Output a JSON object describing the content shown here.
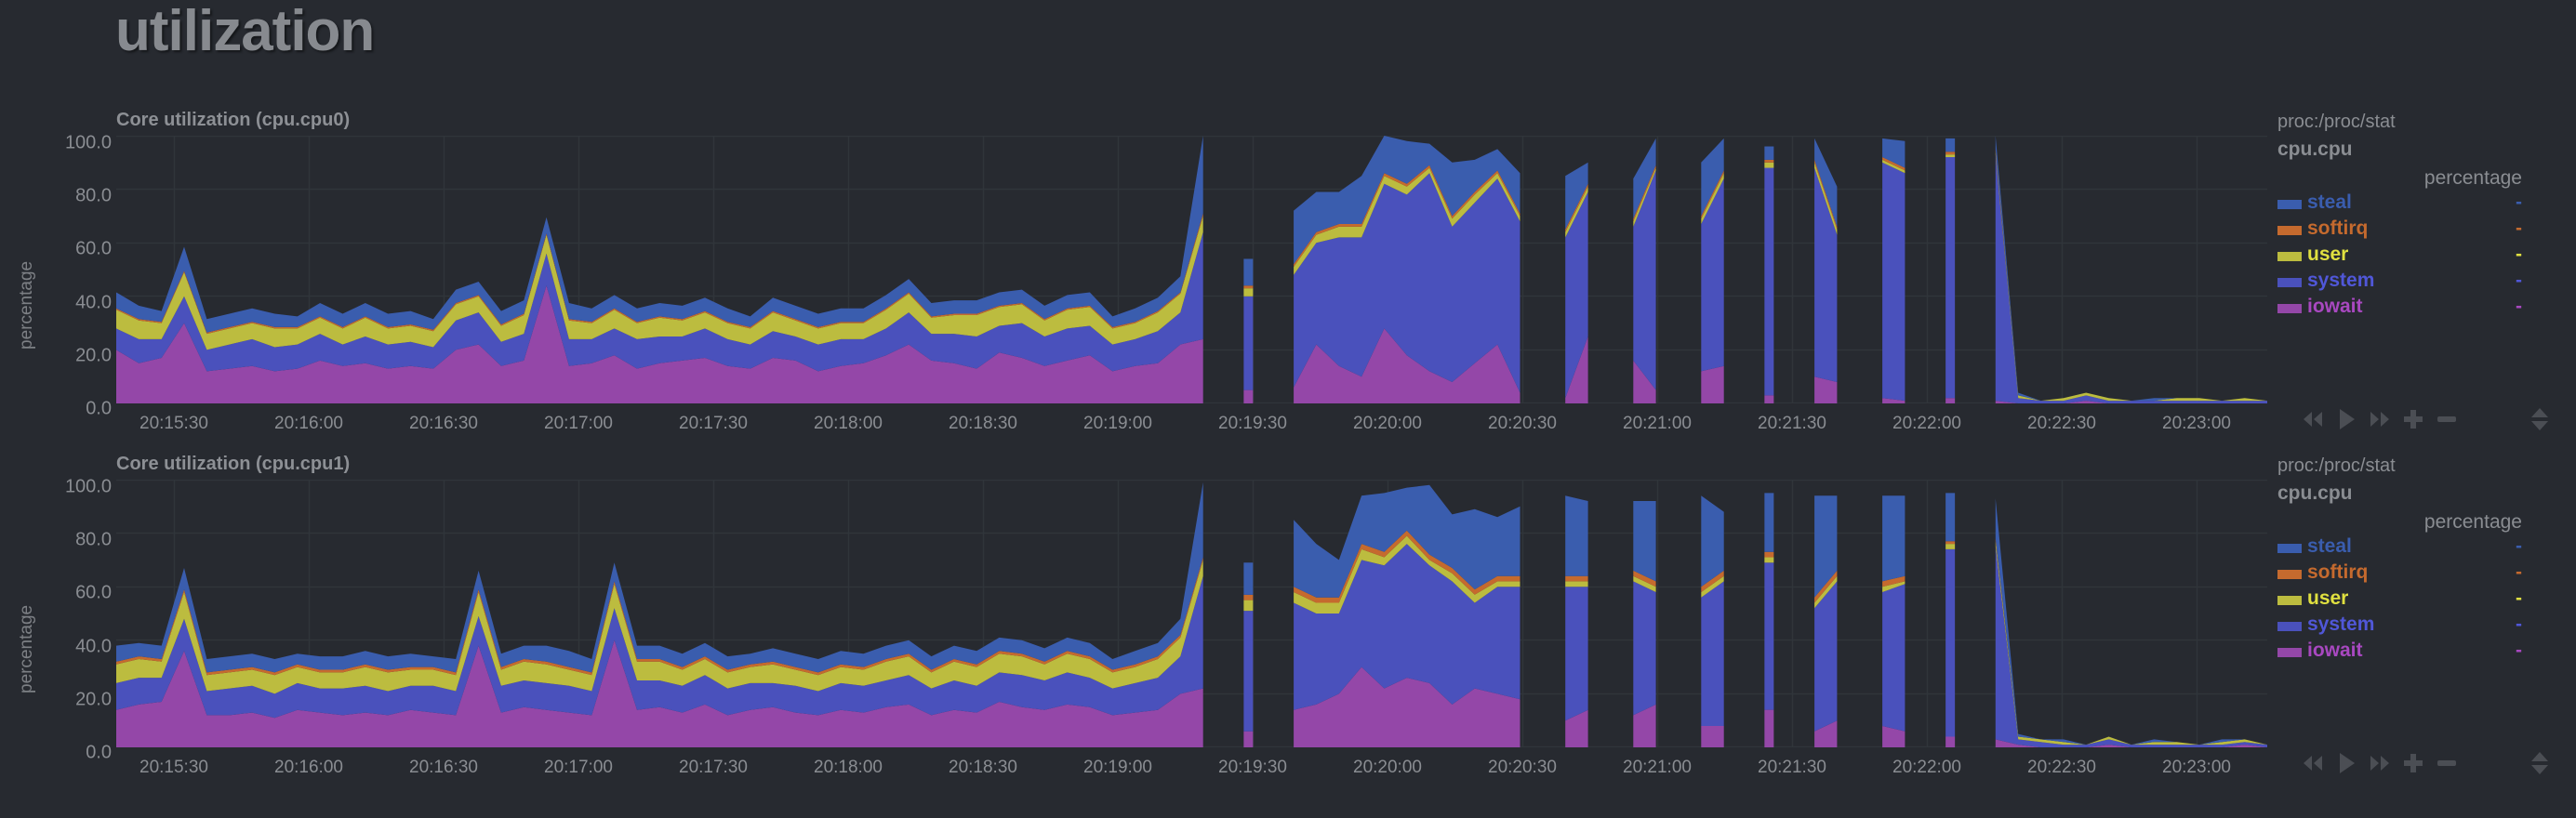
{
  "page": {
    "title": "utilization"
  },
  "colors": {
    "background": "#272a30",
    "grid": "#30353a",
    "steal": "#3a5dae",
    "softirq": "#c56a2e",
    "user": "#bcbc3f",
    "system": "#4a51bc",
    "iowait": "#9447a8",
    "controls": "#4b4e54"
  },
  "charts": [
    {
      "id": "cpu0",
      "title": "Core utilization (cpu.cpu0)",
      "ylabel": "percentage",
      "legend": {
        "source": "proc:/proc/stat",
        "context": "cpu.cpu",
        "units": "percentage",
        "items": [
          {
            "name": "steal",
            "value": "-",
            "color": "#3a5dae"
          },
          {
            "name": "softirq",
            "value": "-",
            "color": "#c56a2e"
          },
          {
            "name": "user",
            "value": "-",
            "color": "#e0e040"
          },
          {
            "name": "system",
            "value": "-",
            "color": "#5057d8"
          },
          {
            "name": "iowait",
            "value": "-",
            "color": "#a848c0"
          }
        ]
      }
    },
    {
      "id": "cpu1",
      "title": "Core utilization (cpu.cpu1)",
      "ylabel": "percentage",
      "legend": {
        "source": "proc:/proc/stat",
        "context": "cpu.cpu",
        "units": "percentage",
        "items": [
          {
            "name": "steal",
            "value": "-",
            "color": "#3a5dae"
          },
          {
            "name": "softirq",
            "value": "-",
            "color": "#c56a2e"
          },
          {
            "name": "user",
            "value": "-",
            "color": "#e0e040"
          },
          {
            "name": "system",
            "value": "-",
            "color": "#5057d8"
          },
          {
            "name": "iowait",
            "value": "-",
            "color": "#a848c0"
          }
        ]
      }
    }
  ],
  "yticks": [
    "100.0",
    "80.0",
    "60.0",
    "40.0",
    "20.0",
    "0.0"
  ],
  "xticks": [
    "20:15:30",
    "20:16:00",
    "20:16:30",
    "20:17:00",
    "20:17:30",
    "20:18:00",
    "20:18:30",
    "20:19:00",
    "20:19:30",
    "20:20:00",
    "20:20:30",
    "20:21:00",
    "20:21:30",
    "20:22:00",
    "20:22:30",
    "20:23:00"
  ],
  "controls": [
    "pan-left",
    "play",
    "pan-right",
    "zoom-in",
    "zoom-out",
    "resize"
  ],
  "chart_data": [
    {
      "type": "area",
      "stacked": true,
      "title": "Core utilization (cpu.cpu0)",
      "xlabel": "",
      "ylabel": "percentage",
      "ylim": [
        0,
        100
      ],
      "grid": true,
      "legend_position": "right",
      "x_start": "20:15:17",
      "x_step_seconds": 5,
      "stack_order": [
        "iowait",
        "system",
        "user",
        "softirq",
        "steal"
      ],
      "series": [
        {
          "name": "iowait",
          "values": [
            20,
            15,
            17,
            30,
            12,
            13,
            14,
            12,
            13,
            16,
            14,
            15,
            13,
            14,
            13,
            20,
            22,
            14,
            16,
            44,
            14,
            15,
            18,
            13,
            15,
            16,
            17,
            14,
            13,
            17,
            16,
            12,
            14,
            15,
            18,
            22,
            16,
            15,
            13,
            19,
            17,
            14,
            16,
            18,
            12,
            14,
            15,
            22,
            24,
            null,
            5,
            null,
            6,
            22,
            14,
            10,
            28,
            18,
            12,
            8,
            15,
            22,
            4,
            null,
            2,
            25,
            null,
            16,
            5,
            null,
            12,
            14,
            null,
            3,
            null,
            10,
            8,
            null,
            2,
            1,
            null,
            2,
            null,
            1,
            0,
            0,
            0,
            1,
            0,
            0,
            0,
            0,
            0,
            0,
            0,
            0
          ]
        },
        {
          "name": "system",
          "values": [
            8,
            9,
            7,
            10,
            8,
            9,
            10,
            9,
            9,
            10,
            8,
            10,
            9,
            9,
            8,
            11,
            12,
            9,
            10,
            12,
            10,
            9,
            10,
            11,
            10,
            9,
            11,
            10,
            9,
            10,
            9,
            10,
            10,
            9,
            10,
            12,
            10,
            11,
            12,
            10,
            13,
            11,
            12,
            11,
            10,
            10,
            12,
            12,
            40,
            null,
            35,
            null,
            42,
            38,
            48,
            52,
            54,
            60,
            74,
            58,
            60,
            62,
            64,
            null,
            60,
            54,
            null,
            50,
            82,
            null,
            55,
            70,
            null,
            85,
            null,
            78,
            55,
            null,
            88,
            85,
            null,
            90,
            null,
            92,
            2,
            1,
            1,
            2,
            1,
            1,
            1,
            1,
            1,
            1,
            1,
            1
          ]
        },
        {
          "name": "user",
          "values": [
            7,
            7,
            6,
            9,
            6,
            6,
            6,
            7,
            6,
            6,
            6,
            7,
            6,
            6,
            6,
            6,
            6,
            6,
            7,
            7,
            7,
            6,
            7,
            6,
            7,
            6,
            6,
            6,
            6,
            7,
            6,
            6,
            6,
            6,
            7,
            7,
            6,
            7,
            8,
            7,
            7,
            6,
            7,
            7,
            6,
            6,
            7,
            7,
            6,
            null,
            3,
            null,
            3,
            3,
            4,
            4,
            3,
            3,
            2,
            3,
            3,
            2,
            2,
            null,
            2,
            2,
            null,
            2,
            1,
            null,
            2,
            2,
            null,
            2,
            null,
            2,
            2,
            null,
            1,
            1,
            null,
            1,
            null,
            1,
            1,
            0,
            1,
            1,
            1,
            0,
            0,
            1,
            1,
            0,
            1,
            0
          ]
        },
        {
          "name": "softirq",
          "values": [
            0.5,
            0.5,
            0.5,
            0.5,
            0.5,
            0.5,
            0.5,
            0.5,
            0.5,
            0.5,
            0.5,
            0.5,
            0.5,
            0.5,
            0.5,
            0.5,
            0.5,
            0.5,
            0.5,
            0.5,
            0.5,
            0.5,
            0.5,
            0.5,
            0.5,
            0.5,
            0.5,
            0.5,
            0.5,
            0.5,
            0.5,
            0.5,
            0.5,
            0.5,
            0.5,
            0.5,
            0.5,
            0.5,
            0.5,
            0.5,
            0.5,
            0.5,
            0.5,
            0.5,
            0.5,
            0.5,
            0.5,
            0.5,
            1,
            null,
            1,
            null,
            1,
            1,
            1,
            1,
            1,
            1,
            1,
            1,
            1,
            1,
            1,
            null,
            1,
            1,
            null,
            1,
            1,
            null,
            1,
            1,
            null,
            1,
            null,
            1,
            1,
            null,
            1,
            1,
            null,
            1,
            null,
            1,
            0,
            0,
            0,
            0,
            0,
            0,
            0,
            0,
            0,
            0,
            0,
            0
          ]
        },
        {
          "name": "steal",
          "values": [
            6,
            5,
            4,
            9,
            5,
            5,
            5,
            5,
            4,
            5,
            5,
            5,
            5,
            5,
            4,
            5,
            5,
            5,
            5,
            6,
            6,
            5,
            5,
            5,
            5,
            5,
            5,
            5,
            4,
            5,
            5,
            5,
            5,
            5,
            5,
            5,
            5,
            5,
            5,
            5,
            5,
            5,
            5,
            5,
            4,
            5,
            5,
            6,
            30,
            null,
            10,
            null,
            20,
            15,
            12,
            18,
            15,
            16,
            8,
            20,
            12,
            8,
            15,
            null,
            20,
            8,
            null,
            15,
            10,
            null,
            20,
            12,
            null,
            5,
            null,
            8,
            15,
            null,
            7,
            10,
            null,
            5,
            null,
            5,
            1,
            0,
            0,
            0,
            0,
            0,
            1,
            0,
            0,
            0,
            0,
            0
          ]
        }
      ]
    },
    {
      "type": "area",
      "stacked": true,
      "title": "Core utilization (cpu.cpu1)",
      "xlabel": "",
      "ylabel": "percentage",
      "ylim": [
        0,
        100
      ],
      "grid": true,
      "legend_position": "right",
      "x_start": "20:15:17",
      "x_step_seconds": 5,
      "stack_order": [
        "iowait",
        "system",
        "user",
        "softirq",
        "steal"
      ],
      "series": [
        {
          "name": "iowait",
          "values": [
            14,
            16,
            17,
            36,
            12,
            12,
            13,
            11,
            14,
            13,
            12,
            13,
            12,
            14,
            13,
            12,
            38,
            13,
            15,
            14,
            13,
            12,
            40,
            14,
            15,
            13,
            16,
            12,
            14,
            15,
            13,
            12,
            14,
            13,
            15,
            16,
            12,
            14,
            13,
            17,
            15,
            14,
            16,
            15,
            12,
            13,
            14,
            20,
            22,
            null,
            6,
            null,
            14,
            16,
            20,
            30,
            22,
            26,
            24,
            16,
            22,
            20,
            18,
            null,
            10,
            14,
            null,
            12,
            16,
            null,
            8,
            8,
            null,
            14,
            null,
            6,
            10,
            null,
            8,
            6,
            null,
            4,
            null,
            3,
            1,
            0,
            0,
            0,
            1,
            0,
            0,
            0,
            0,
            0,
            1,
            0
          ]
        },
        {
          "name": "system",
          "values": [
            10,
            10,
            9,
            12,
            9,
            10,
            10,
            9,
            10,
            9,
            10,
            10,
            9,
            9,
            10,
            9,
            11,
            10,
            10,
            10,
            10,
            9,
            12,
            11,
            10,
            10,
            11,
            10,
            10,
            9,
            10,
            9,
            10,
            10,
            10,
            11,
            10,
            11,
            10,
            11,
            12,
            11,
            12,
            11,
            10,
            11,
            12,
            14,
            42,
            null,
            45,
            null,
            40,
            34,
            30,
            40,
            46,
            50,
            44,
            46,
            32,
            40,
            42,
            null,
            50,
            46,
            null,
            50,
            42,
            null,
            48,
            54,
            null,
            55,
            null,
            46,
            52,
            null,
            50,
            55,
            null,
            70,
            null,
            72,
            2,
            2,
            1,
            1,
            2,
            1,
            1,
            1,
            1,
            1,
            1,
            1
          ]
        },
        {
          "name": "user",
          "values": [
            7,
            7,
            6,
            10,
            6,
            6,
            6,
            7,
            6,
            6,
            6,
            7,
            7,
            6,
            6,
            6,
            9,
            6,
            7,
            7,
            6,
            6,
            9,
            7,
            7,
            6,
            6,
            6,
            6,
            7,
            6,
            6,
            6,
            6,
            7,
            7,
            6,
            7,
            7,
            7,
            7,
            6,
            7,
            7,
            6,
            6,
            7,
            7,
            6,
            null,
            4,
            null,
            4,
            4,
            4,
            4,
            3,
            3,
            2,
            3,
            3,
            2,
            2,
            null,
            2,
            2,
            null,
            2,
            2,
            null,
            2,
            2,
            null,
            2,
            null,
            2,
            2,
            null,
            2,
            1,
            null,
            2,
            null,
            2,
            1,
            1,
            1,
            0,
            1,
            0,
            1,
            1,
            0,
            1,
            1,
            0
          ]
        },
        {
          "name": "softirq",
          "values": [
            1,
            1,
            1,
            1,
            1,
            1,
            1,
            1,
            1,
            1,
            1,
            1,
            1,
            1,
            1,
            1,
            1,
            1,
            1,
            1,
            1,
            1,
            1,
            1,
            1,
            1,
            1,
            1,
            1,
            1,
            1,
            1,
            1,
            1,
            1,
            1,
            1,
            1,
            1,
            1,
            1,
            1,
            1,
            1,
            1,
            1,
            1,
            1,
            1,
            null,
            2,
            null,
            2,
            2,
            2,
            2,
            2,
            2,
            2,
            2,
            2,
            2,
            2,
            null,
            2,
            2,
            null,
            2,
            2,
            null,
            2,
            2,
            null,
            2,
            null,
            2,
            2,
            null,
            2,
            2,
            null,
            1,
            null,
            1,
            0,
            0,
            0,
            0,
            0,
            0,
            0,
            0,
            0,
            0,
            0,
            0
          ]
        },
        {
          "name": "steal",
          "values": [
            6,
            5,
            5,
            8,
            5,
            5,
            5,
            5,
            4,
            5,
            5,
            5,
            5,
            5,
            4,
            5,
            7,
            5,
            5,
            6,
            6,
            5,
            7,
            5,
            5,
            5,
            5,
            5,
            4,
            5,
            5,
            5,
            5,
            5,
            5,
            5,
            5,
            5,
            5,
            5,
            5,
            5,
            5,
            5,
            4,
            5,
            5,
            6,
            28,
            null,
            12,
            null,
            25,
            20,
            14,
            18,
            22,
            16,
            26,
            20,
            30,
            22,
            26,
            null,
            30,
            28,
            null,
            26,
            30,
            null,
            34,
            22,
            null,
            22,
            null,
            38,
            28,
            null,
            32,
            30,
            null,
            18,
            null,
            15,
            1,
            0,
            1,
            0,
            0,
            0,
            1,
            0,
            0,
            1,
            0,
            0
          ]
        }
      ]
    }
  ]
}
